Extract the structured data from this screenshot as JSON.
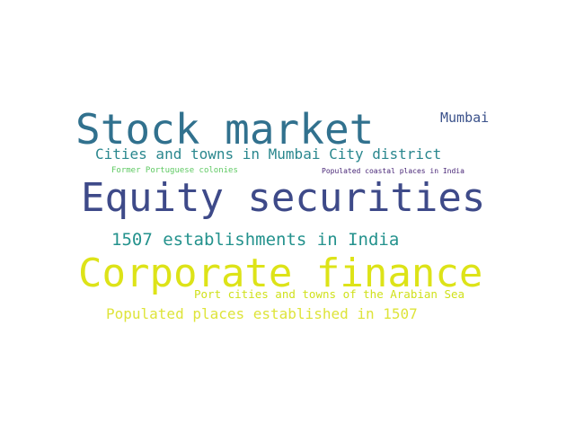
{
  "words": [
    {
      "text": "Stock market",
      "color": "#31718e"
    },
    {
      "text": "Mumbai",
      "color": "#3b528b"
    },
    {
      "text": "Cities and towns in Mumbai City district",
      "color": "#2a878e"
    },
    {
      "text": "Former Portuguese colonies",
      "color": "#5ec962"
    },
    {
      "text": "Populated coastal places in India",
      "color": "#482677"
    },
    {
      "text": "Equity securities",
      "color": "#3e4a89"
    },
    {
      "text": "1507 establishments in India",
      "color": "#24928d"
    },
    {
      "text": "Corporate finance",
      "color": "#dde318"
    },
    {
      "text": "Port cities and towns of the Arabian Sea",
      "color": "#d0e11c"
    },
    {
      "text": "Populated places established in 1507",
      "color": "#dee43a"
    }
  ]
}
